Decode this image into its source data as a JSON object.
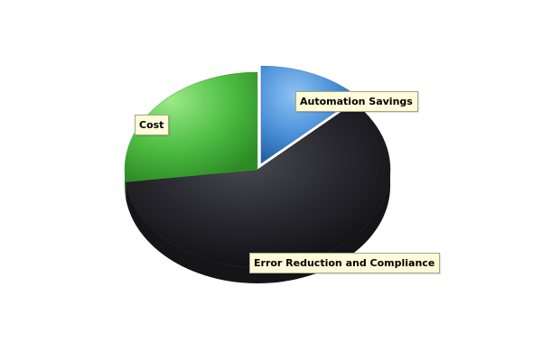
{
  "chart_data": {
    "type": "pie",
    "style": "3d",
    "exploded_slice": "Automation Savings",
    "slices": [
      {
        "label": "Automation Savings",
        "value": 13,
        "color": "#4a90d9"
      },
      {
        "label": "Error Reduction and Compliance",
        "value": 60,
        "color": "#26262c"
      },
      {
        "label": "Cost",
        "value": 27,
        "color": "#4fbe44"
      }
    ]
  }
}
